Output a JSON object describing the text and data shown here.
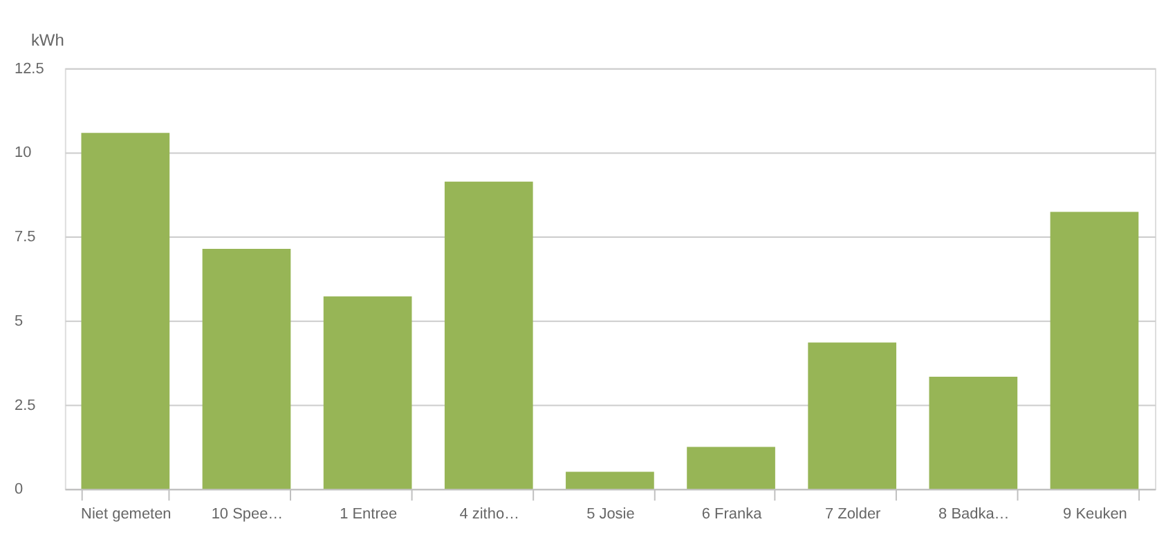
{
  "chart_data": {
    "type": "bar",
    "ylabel": "kWh",
    "categories": [
      "Niet gemeten",
      "10 Spee…",
      "1 Entree",
      "4 zitho…",
      "5 Josie",
      "6 Franka",
      "7 Zolder",
      "8 Badka…",
      "9 Keuken"
    ],
    "values": [
      10.58,
      7.13,
      5.72,
      9.13,
      0.51,
      1.25,
      4.35,
      3.33,
      8.23
    ],
    "color": "#97b556",
    "ylim": [
      0,
      12.5
    ],
    "yticks": [
      0,
      2.5,
      5,
      7.5,
      10,
      12.5
    ],
    "grid": "y"
  }
}
